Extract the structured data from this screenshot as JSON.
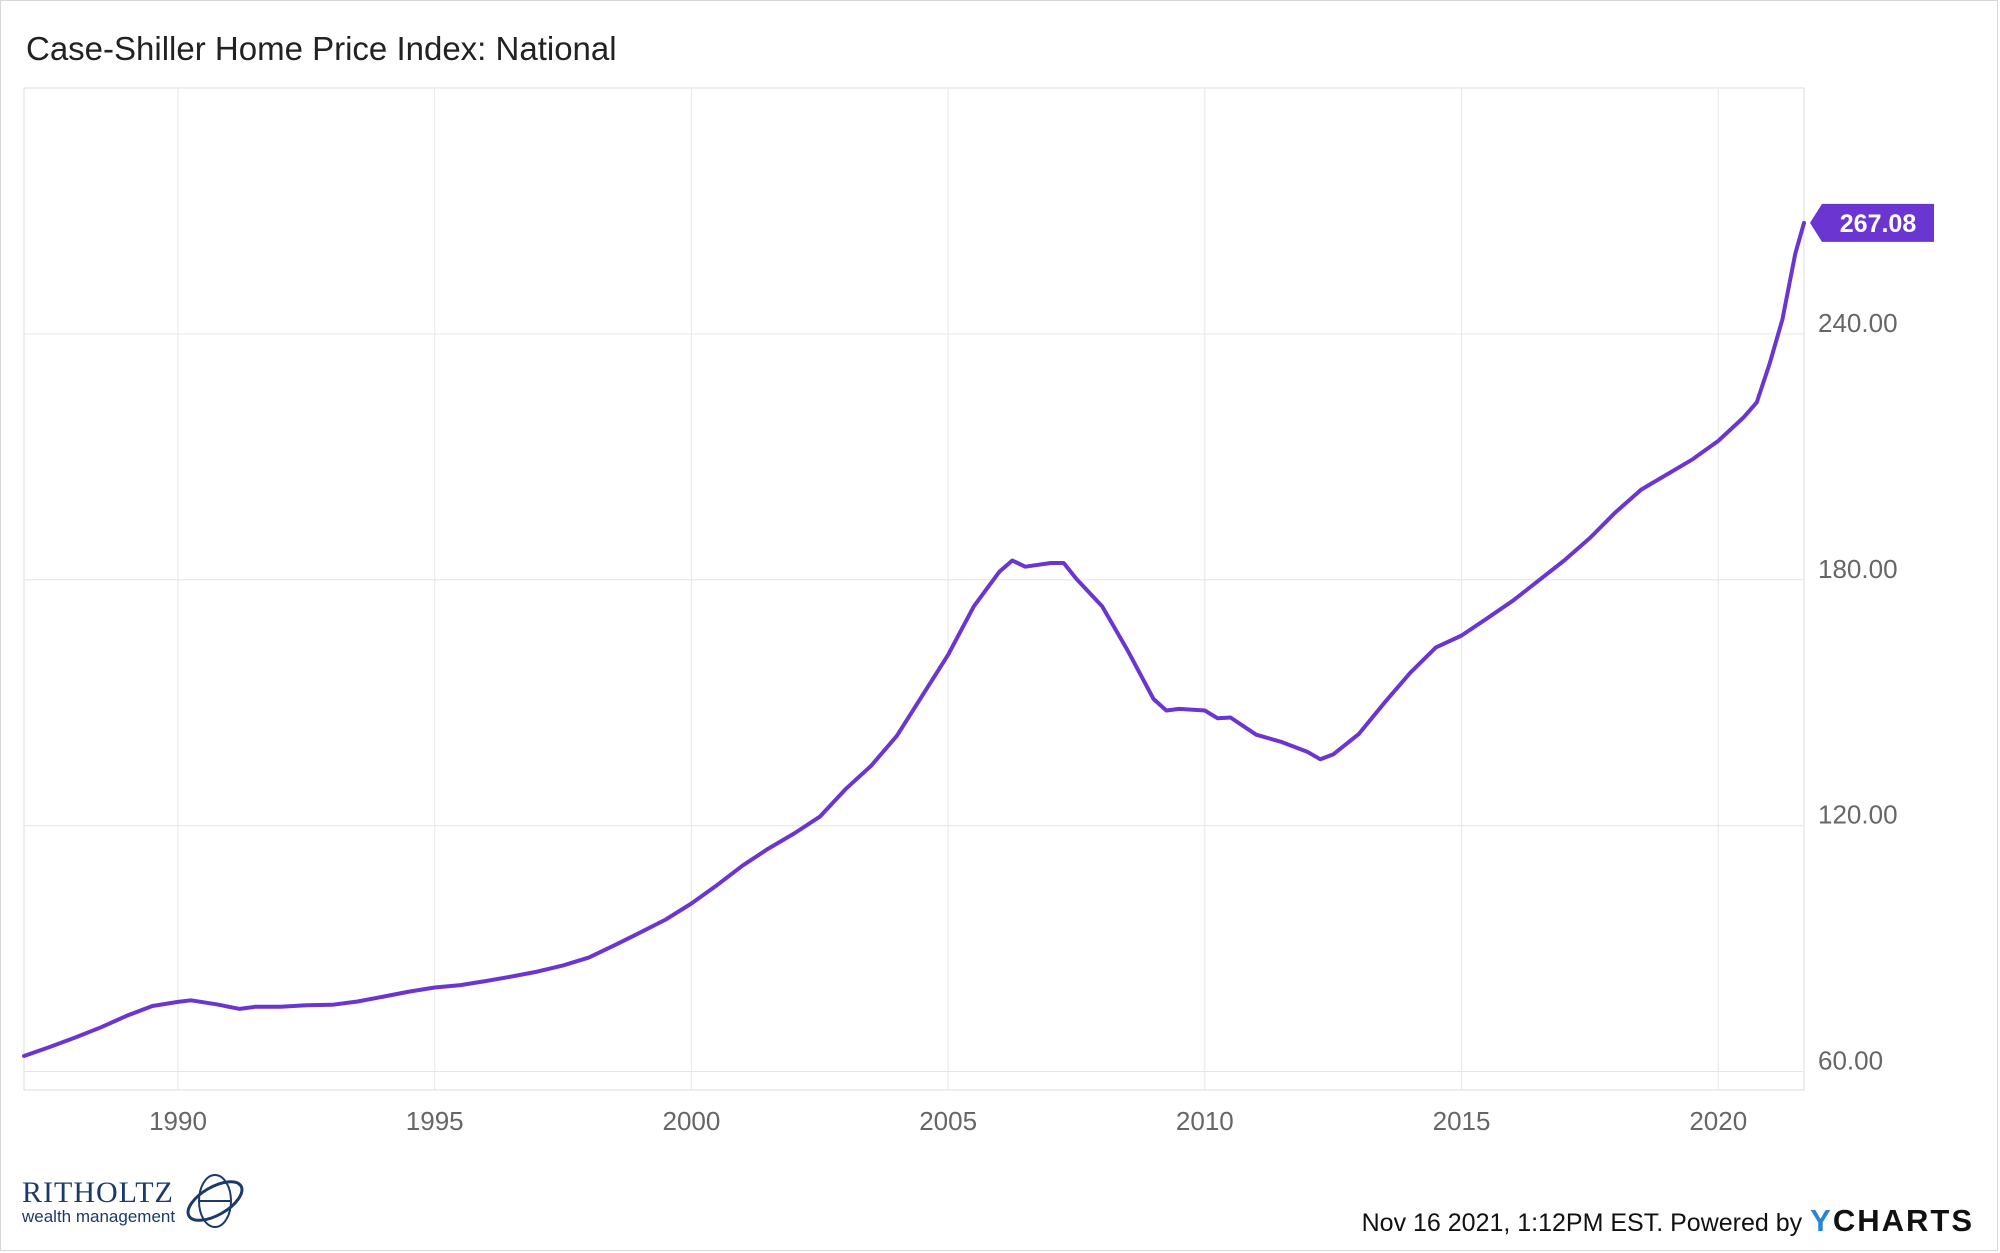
{
  "title": "Case-Shiller Home Price Index: National",
  "footer": {
    "timestamp": "Nov 16 2021, 1:12PM EST. Powered by",
    "brand_prefix": "Y",
    "brand_rest": "CHARTS"
  },
  "logo": {
    "name": "RITHOLTZ",
    "subtitle": "wealth management"
  },
  "colors": {
    "line": "#6a35d0",
    "grid": "#e6e6e6",
    "axis_text": "#666666",
    "badge_bg": "#6a35d0",
    "badge_text": "#ffffff"
  },
  "chart_data": {
    "type": "line",
    "title": "Case-Shiller Home Price Index: National",
    "xlabel": "",
    "ylabel": "",
    "xlim": [
      1987.0,
      2021.67
    ],
    "ylim": [
      55.5,
      300.0
    ],
    "grid": true,
    "legend": "none",
    "x_ticks": [
      1990,
      1995,
      2000,
      2005,
      2010,
      2015,
      2020
    ],
    "x_tick_labels": [
      "1990",
      "1995",
      "2000",
      "2005",
      "2010",
      "2015",
      "2020"
    ],
    "y_ticks": [
      60,
      120,
      180,
      240
    ],
    "y_tick_labels": [
      "60.00",
      "120.00",
      "180.00",
      "240.00"
    ],
    "last_value_label": "267.08",
    "series": [
      {
        "values": [
          [
            1987.0,
            63.8
          ],
          [
            1987.5,
            66.0
          ],
          [
            1988.0,
            68.3
          ],
          [
            1988.5,
            70.8
          ],
          [
            1989.0,
            73.6
          ],
          [
            1989.5,
            76.0
          ],
          [
            1990.0,
            77.0
          ],
          [
            1990.25,
            77.4
          ],
          [
            1990.75,
            76.4
          ],
          [
            1991.2,
            75.3
          ],
          [
            1991.5,
            75.8
          ],
          [
            1992.0,
            75.8
          ],
          [
            1992.5,
            76.2
          ],
          [
            1993.0,
            76.3
          ],
          [
            1993.5,
            77.1
          ],
          [
            1994.0,
            78.3
          ],
          [
            1994.5,
            79.5
          ],
          [
            1995.0,
            80.5
          ],
          [
            1995.5,
            81.1
          ],
          [
            1996.0,
            82.1
          ],
          [
            1996.5,
            83.2
          ],
          [
            1997.0,
            84.4
          ],
          [
            1997.5,
            85.9
          ],
          [
            1998.0,
            87.8
          ],
          [
            1998.5,
            90.8
          ],
          [
            1999.0,
            93.9
          ],
          [
            1999.5,
            97.1
          ],
          [
            2000.0,
            101.0
          ],
          [
            2000.5,
            105.5
          ],
          [
            2001.0,
            110.3
          ],
          [
            2001.5,
            114.4
          ],
          [
            2002.0,
            118.1
          ],
          [
            2002.5,
            122.2
          ],
          [
            2003.0,
            128.9
          ],
          [
            2003.5,
            134.6
          ],
          [
            2004.0,
            141.9
          ],
          [
            2004.5,
            151.8
          ],
          [
            2005.0,
            161.7
          ],
          [
            2005.5,
            173.5
          ],
          [
            2006.0,
            182.0
          ],
          [
            2006.25,
            184.7
          ],
          [
            2006.5,
            183.2
          ],
          [
            2007.0,
            184.1
          ],
          [
            2007.25,
            184.1
          ],
          [
            2007.5,
            180.2
          ],
          [
            2008.0,
            173.5
          ],
          [
            2008.5,
            162.7
          ],
          [
            2009.0,
            150.9
          ],
          [
            2009.25,
            148.1
          ],
          [
            2009.5,
            148.5
          ],
          [
            2010.0,
            148.1
          ],
          [
            2010.25,
            146.2
          ],
          [
            2010.5,
            146.4
          ],
          [
            2011.0,
            142.2
          ],
          [
            2011.5,
            140.4
          ],
          [
            2012.0,
            138.0
          ],
          [
            2012.25,
            136.2
          ],
          [
            2012.5,
            137.4
          ],
          [
            2013.0,
            142.4
          ],
          [
            2013.5,
            150.0
          ],
          [
            2014.0,
            157.3
          ],
          [
            2014.5,
            163.5
          ],
          [
            2015.0,
            166.4
          ],
          [
            2015.5,
            170.6
          ],
          [
            2016.0,
            174.9
          ],
          [
            2016.5,
            179.8
          ],
          [
            2017.0,
            184.7
          ],
          [
            2017.5,
            190.2
          ],
          [
            2018.0,
            196.5
          ],
          [
            2018.5,
            202.0
          ],
          [
            2019.0,
            205.7
          ],
          [
            2019.5,
            209.4
          ],
          [
            2020.0,
            213.9
          ],
          [
            2020.5,
            219.7
          ],
          [
            2020.75,
            223.3
          ],
          [
            2021.0,
            232.7
          ],
          [
            2021.25,
            243.5
          ],
          [
            2021.5,
            259.6
          ],
          [
            2021.67,
            267.08
          ]
        ]
      }
    ]
  }
}
